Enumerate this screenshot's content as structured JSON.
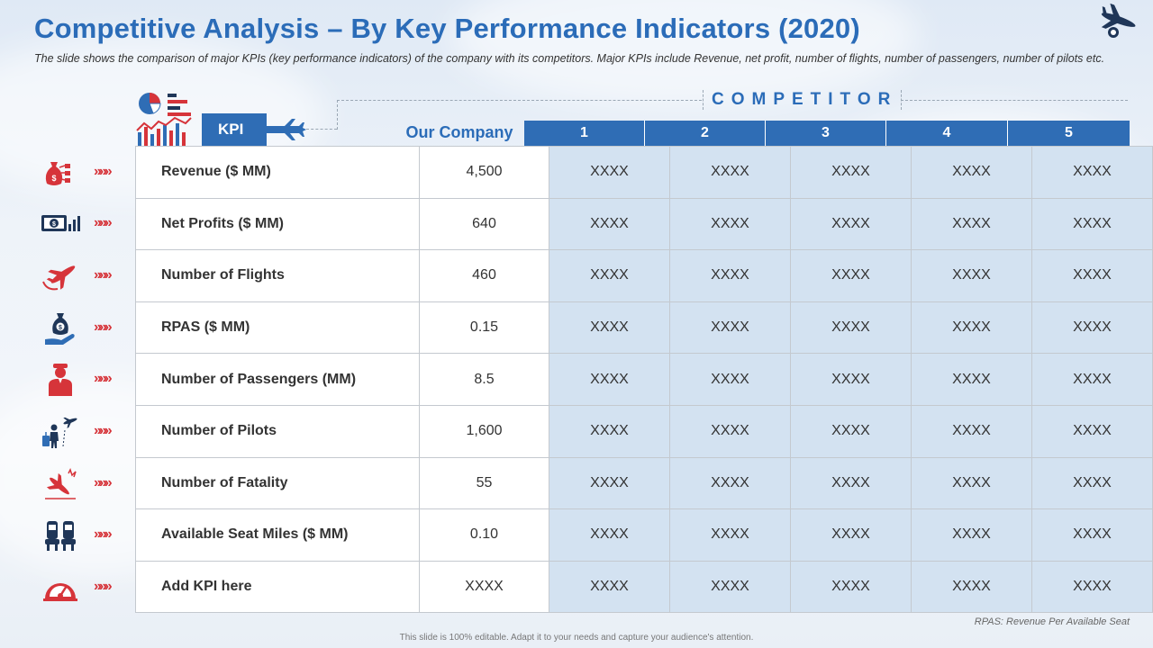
{
  "title": "Competitive Analysis – By Key Performance Indicators (2020)",
  "subtitle": "The slide shows the comparison of major KPIs (key performance indicators) of the company with its competitors. Major KPIs include Revenue, net profit, number of flights, number of passengers, number of pilots etc.",
  "kpi_label": "KPI",
  "competitor_label": "COMPETITOR",
  "our_company_label": "Our Company",
  "competitors": [
    "1",
    "2",
    "3",
    "4",
    "5"
  ],
  "rows": [
    {
      "icon": "money-bag-icon",
      "kpi": "Revenue ($ MM)",
      "our": "4,500",
      "values": [
        "XXXX",
        "XXXX",
        "XXXX",
        "XXXX",
        "XXXX"
      ]
    },
    {
      "icon": "cash-chart-icon",
      "kpi": "Net Profits ($ MM)",
      "our": "640",
      "values": [
        "XXXX",
        "XXXX",
        "XXXX",
        "XXXX",
        "XXXX"
      ]
    },
    {
      "icon": "airplane-icon",
      "kpi": "Number of Flights",
      "our": "460",
      "values": [
        "XXXX",
        "XXXX",
        "XXXX",
        "XXXX",
        "XXXX"
      ]
    },
    {
      "icon": "money-hand-icon",
      "kpi": "RPAS ($ MM)",
      "our": "0.15",
      "values": [
        "XXXX",
        "XXXX",
        "XXXX",
        "XXXX",
        "XXXX"
      ]
    },
    {
      "icon": "passenger-icon",
      "kpi": "Number of Passengers (MM)",
      "our": "8.5",
      "values": [
        "XXXX",
        "XXXX",
        "XXXX",
        "XXXX",
        "XXXX"
      ]
    },
    {
      "icon": "pilot-travel-icon",
      "kpi": "Number of Pilots",
      "our": "1,600",
      "values": [
        "XXXX",
        "XXXX",
        "XXXX",
        "XXXX",
        "XXXX"
      ]
    },
    {
      "icon": "plane-crash-icon",
      "kpi": "Number of Fatality",
      "our": "55",
      "values": [
        "XXXX",
        "XXXX",
        "XXXX",
        "XXXX",
        "XXXX"
      ]
    },
    {
      "icon": "airplane-seat-icon",
      "kpi": "Available Seat Miles ($ MM)",
      "our": "0.10",
      "values": [
        "XXXX",
        "XXXX",
        "XXXX",
        "XXXX",
        "XXXX"
      ]
    },
    {
      "icon": "speedometer-icon",
      "kpi": "Add KPI here",
      "our": "XXXX",
      "values": [
        "XXXX",
        "XXXX",
        "XXXX",
        "XXXX",
        "XXXX"
      ]
    }
  ],
  "arrows": "»»»",
  "footnote": "RPAS: Revenue Per Available Seat",
  "bottom_note": "This slide is 100% editable. Adapt it to your needs and capture your audience's attention.",
  "colors": {
    "accent": "#2b6cb8",
    "header_bg": "#2f6db5",
    "cell_bg": "#d3e2f1",
    "icon_red": "#d6343a",
    "icon_navy": "#1f3658"
  }
}
